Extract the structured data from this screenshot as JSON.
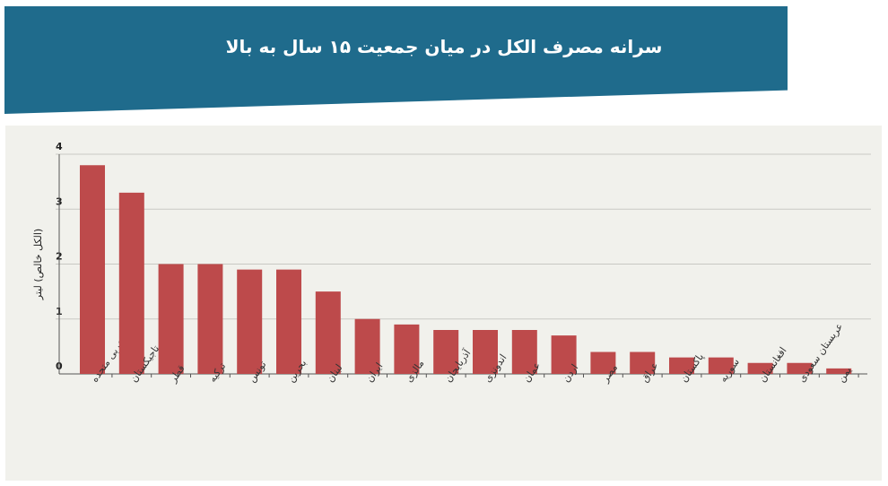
{
  "header": {
    "title": "سرانه مصرف الکل در میان جمعیت ۱۵ سال به بالا",
    "background": "#1f6b8c"
  },
  "chart_data": {
    "type": "bar",
    "title": "سرانه مصرف الکل در میان جمعیت ۱۵ سال به بالا",
    "ylabel": "(الکل خالص) لیتر",
    "xlabel": "",
    "ylim": [
      0,
      4
    ],
    "yticks": [
      "0",
      "1",
      "2",
      "3",
      "4"
    ],
    "grid": true,
    "bar_color": "#bd4a4b",
    "categories": [
      "امارات عربی متحده",
      "تاجیکستان",
      "قطر",
      "ترکیه",
      "تونس",
      "بحرین",
      "لبنان",
      "ایران",
      "مالزی",
      "آذربایجان",
      "اندونزی",
      "عمان",
      "اردن",
      "مصر",
      "عراق",
      "پاکستان",
      "سوریه",
      "افغانستان",
      "عربستان سعودی",
      "یمن"
    ],
    "values": [
      3.8,
      3.3,
      2.0,
      2.0,
      1.9,
      1.9,
      1.5,
      1.0,
      0.9,
      0.8,
      0.8,
      0.8,
      0.7,
      0.4,
      0.4,
      0.3,
      0.3,
      0.2,
      0.2,
      0.1
    ]
  }
}
